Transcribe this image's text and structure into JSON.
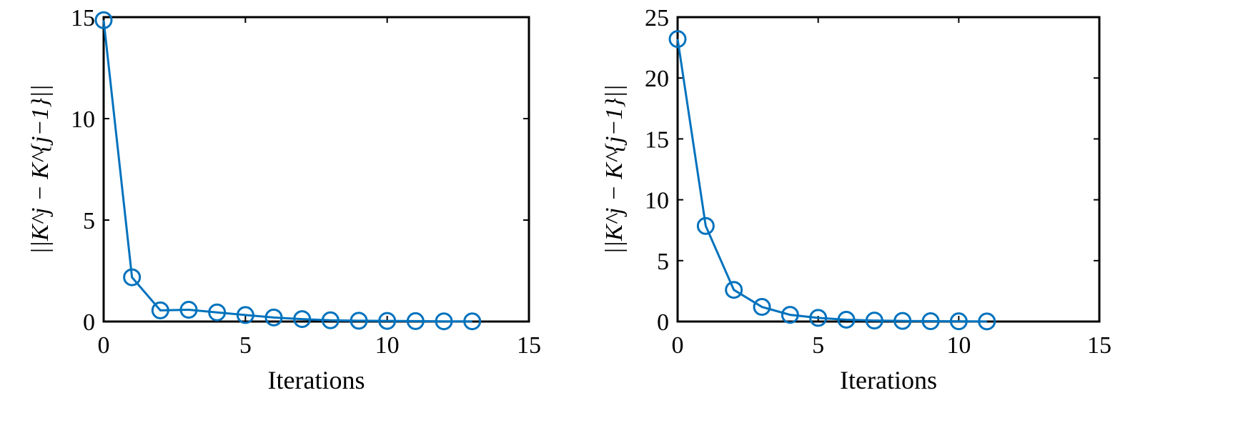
{
  "chart_data": [
    {
      "type": "line",
      "xlabel": "Iterations",
      "ylabel": "||K^j − K^{j−1}||",
      "xlim": [
        0,
        15
      ],
      "ylim": [
        0,
        15
      ],
      "xticks": [
        0,
        5,
        10,
        15
      ],
      "yticks": [
        0,
        5,
        10,
        15
      ],
      "grid": false,
      "marker": "circle",
      "color": "#0072BD",
      "x": [
        0,
        1,
        2,
        3,
        4,
        5,
        6,
        7,
        8,
        9,
        10,
        11,
        12,
        13
      ],
      "y": [
        14.85,
        2.18,
        0.55,
        0.58,
        0.45,
        0.32,
        0.2,
        0.12,
        0.06,
        0.04,
        0.03,
        0.02,
        0.01,
        0.01
      ]
    },
    {
      "type": "line",
      "xlabel": "Iterations",
      "ylabel": "||K^j − K^{j−1}||",
      "xlim": [
        0,
        15
      ],
      "ylim": [
        0,
        25
      ],
      "xticks": [
        0,
        5,
        10,
        15
      ],
      "yticks": [
        0,
        5,
        10,
        15,
        20,
        25
      ],
      "grid": false,
      "marker": "circle",
      "color": "#0072BD",
      "x": [
        0,
        1,
        2,
        3,
        4,
        5,
        6,
        7,
        8,
        9,
        10,
        11
      ],
      "y": [
        23.2,
        7.85,
        2.6,
        1.2,
        0.55,
        0.3,
        0.15,
        0.08,
        0.05,
        0.03,
        0.02,
        0.01
      ]
    }
  ]
}
